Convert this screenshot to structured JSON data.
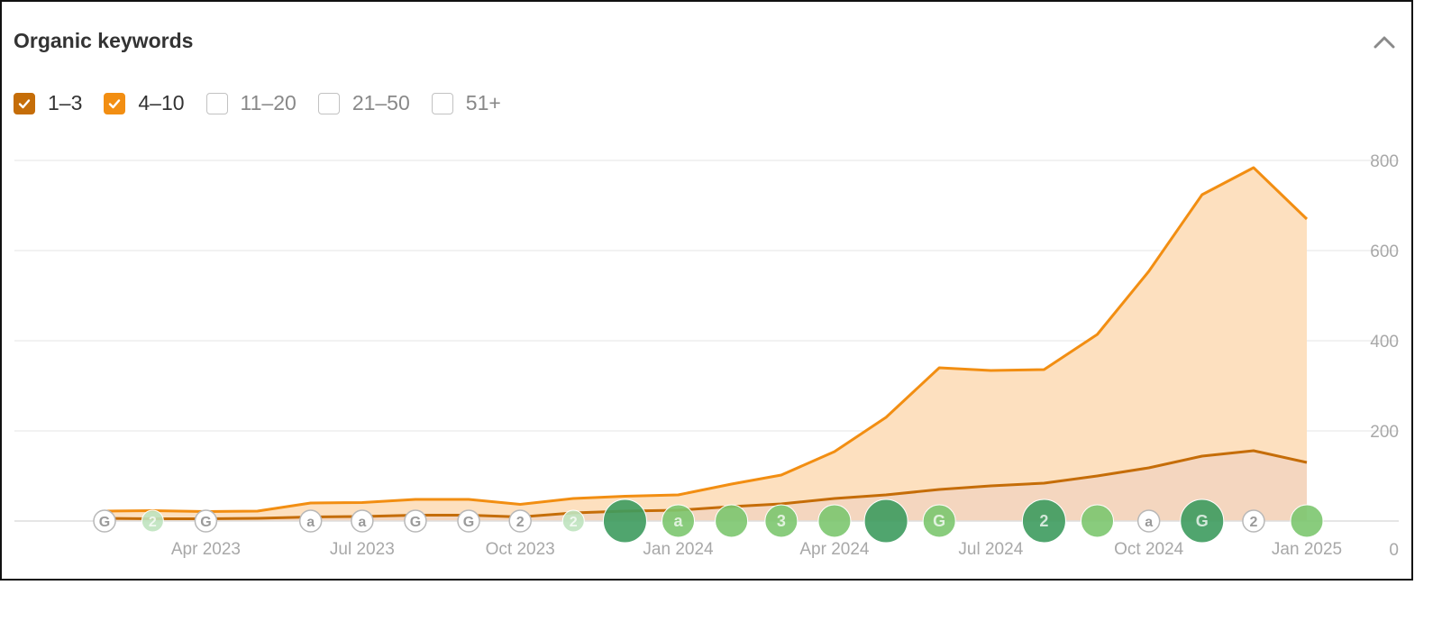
{
  "widget": {
    "title": "Organic keywords",
    "collapse_icon": "chevron-up-icon"
  },
  "legend": [
    {
      "label": "1–3",
      "checked": true,
      "color": "#c56d08"
    },
    {
      "label": "4–10",
      "checked": true,
      "color": "#f28e12"
    },
    {
      "label": "11–20",
      "checked": false
    },
    {
      "label": "21–50",
      "checked": false
    },
    {
      "label": "51+",
      "checked": false
    }
  ],
  "chart_data": {
    "type": "area",
    "stacked": true,
    "x": [
      "2023-02-01",
      "2023-03-01",
      "2023-04-01",
      "2023-05-01",
      "2023-06-01",
      "2023-07-01",
      "2023-08-01",
      "2023-09-01",
      "2023-10-01",
      "2023-11-01",
      "2023-12-01",
      "2024-01-01",
      "2024-02-01",
      "2024-03-01",
      "2024-04-01",
      "2024-05-01",
      "2024-06-01",
      "2024-07-01",
      "2024-08-01",
      "2024-09-01",
      "2024-10-01",
      "2024-11-01",
      "2024-12-01",
      "2025-01-01"
    ],
    "series": [
      {
        "name": "1–3",
        "color": "#c56d08",
        "fill": "#f4d6bf",
        "values": [
          6,
          5,
          5,
          6,
          9,
          10,
          13,
          13,
          9,
          18,
          22,
          24,
          32,
          38,
          50,
          58,
          70,
          78,
          84,
          100,
          118,
          144,
          156,
          130
        ]
      },
      {
        "name": "4–10",
        "color": "#f28e12",
        "fill": "#fde0bf",
        "values": [
          16,
          18,
          16,
          16,
          31,
          31,
          35,
          35,
          28,
          32,
          33,
          34,
          50,
          64,
          104,
          172,
          270,
          256,
          252,
          314,
          436,
          580,
          628,
          540
        ]
      }
    ],
    "x_tick_labels": [
      "Apr 2023",
      "Jul 2023",
      "Oct 2023",
      "Jan 2024",
      "Apr 2024",
      "Jul 2024",
      "Oct 2024",
      "Jan 2025"
    ],
    "y_ticks": [
      0,
      200,
      400,
      600,
      800
    ],
    "ylim": [
      0,
      800
    ],
    "grid": true,
    "y_axis_side": "right",
    "annotations": [
      {
        "date": "2023-02-01",
        "label": "G",
        "size": "small",
        "color": "#ffffff"
      },
      {
        "date": "2023-03-01",
        "label": "2",
        "size": "small",
        "color": "#bfe3bf"
      },
      {
        "date": "2023-04-01",
        "label": "G",
        "size": "small",
        "color": "#ffffff"
      },
      {
        "date": "2023-06-01",
        "label": "a",
        "size": "small",
        "color": "#ffffff"
      },
      {
        "date": "2023-07-01",
        "label": "a",
        "size": "small",
        "color": "#ffffff"
      },
      {
        "date": "2023-08-01",
        "label": "G",
        "size": "small",
        "color": "#ffffff"
      },
      {
        "date": "2023-09-01",
        "label": "G",
        "size": "small",
        "color": "#ffffff"
      },
      {
        "date": "2023-10-01",
        "label": "2",
        "size": "small",
        "color": "#ffffff"
      },
      {
        "date": "2023-11-01",
        "label": "2",
        "size": "small",
        "color": "#bfe3bf"
      },
      {
        "date": "2023-12-01",
        "label": "",
        "size": "large",
        "color": "#3d9b5e"
      },
      {
        "date": "2024-01-01",
        "label": "a",
        "size": "medium",
        "color": "#7cc66f"
      },
      {
        "date": "2024-02-01",
        "label": "",
        "size": "medium",
        "color": "#7cc66f"
      },
      {
        "date": "2024-03-01",
        "label": "3",
        "size": "medium",
        "color": "#7cc66f"
      },
      {
        "date": "2024-04-01",
        "label": "",
        "size": "medium",
        "color": "#7cc66f"
      },
      {
        "date": "2024-05-01",
        "label": "",
        "size": "large",
        "color": "#3d9b5e"
      },
      {
        "date": "2024-06-01",
        "label": "G",
        "size": "medium",
        "color": "#7cc66f"
      },
      {
        "date": "2024-08-01",
        "label": "2",
        "size": "large",
        "color": "#3d9b5e"
      },
      {
        "date": "2024-09-01",
        "label": "",
        "size": "medium",
        "color": "#7cc66f"
      },
      {
        "date": "2024-10-01",
        "label": "a",
        "size": "small",
        "color": "#ffffff"
      },
      {
        "date": "2024-11-01",
        "label": "G",
        "size": "large",
        "color": "#3d9b5e"
      },
      {
        "date": "2024-12-01",
        "label": "2",
        "size": "small",
        "color": "#ffffff"
      },
      {
        "date": "2025-01-01",
        "label": "",
        "size": "medium",
        "color": "#7cc66f"
      }
    ]
  }
}
